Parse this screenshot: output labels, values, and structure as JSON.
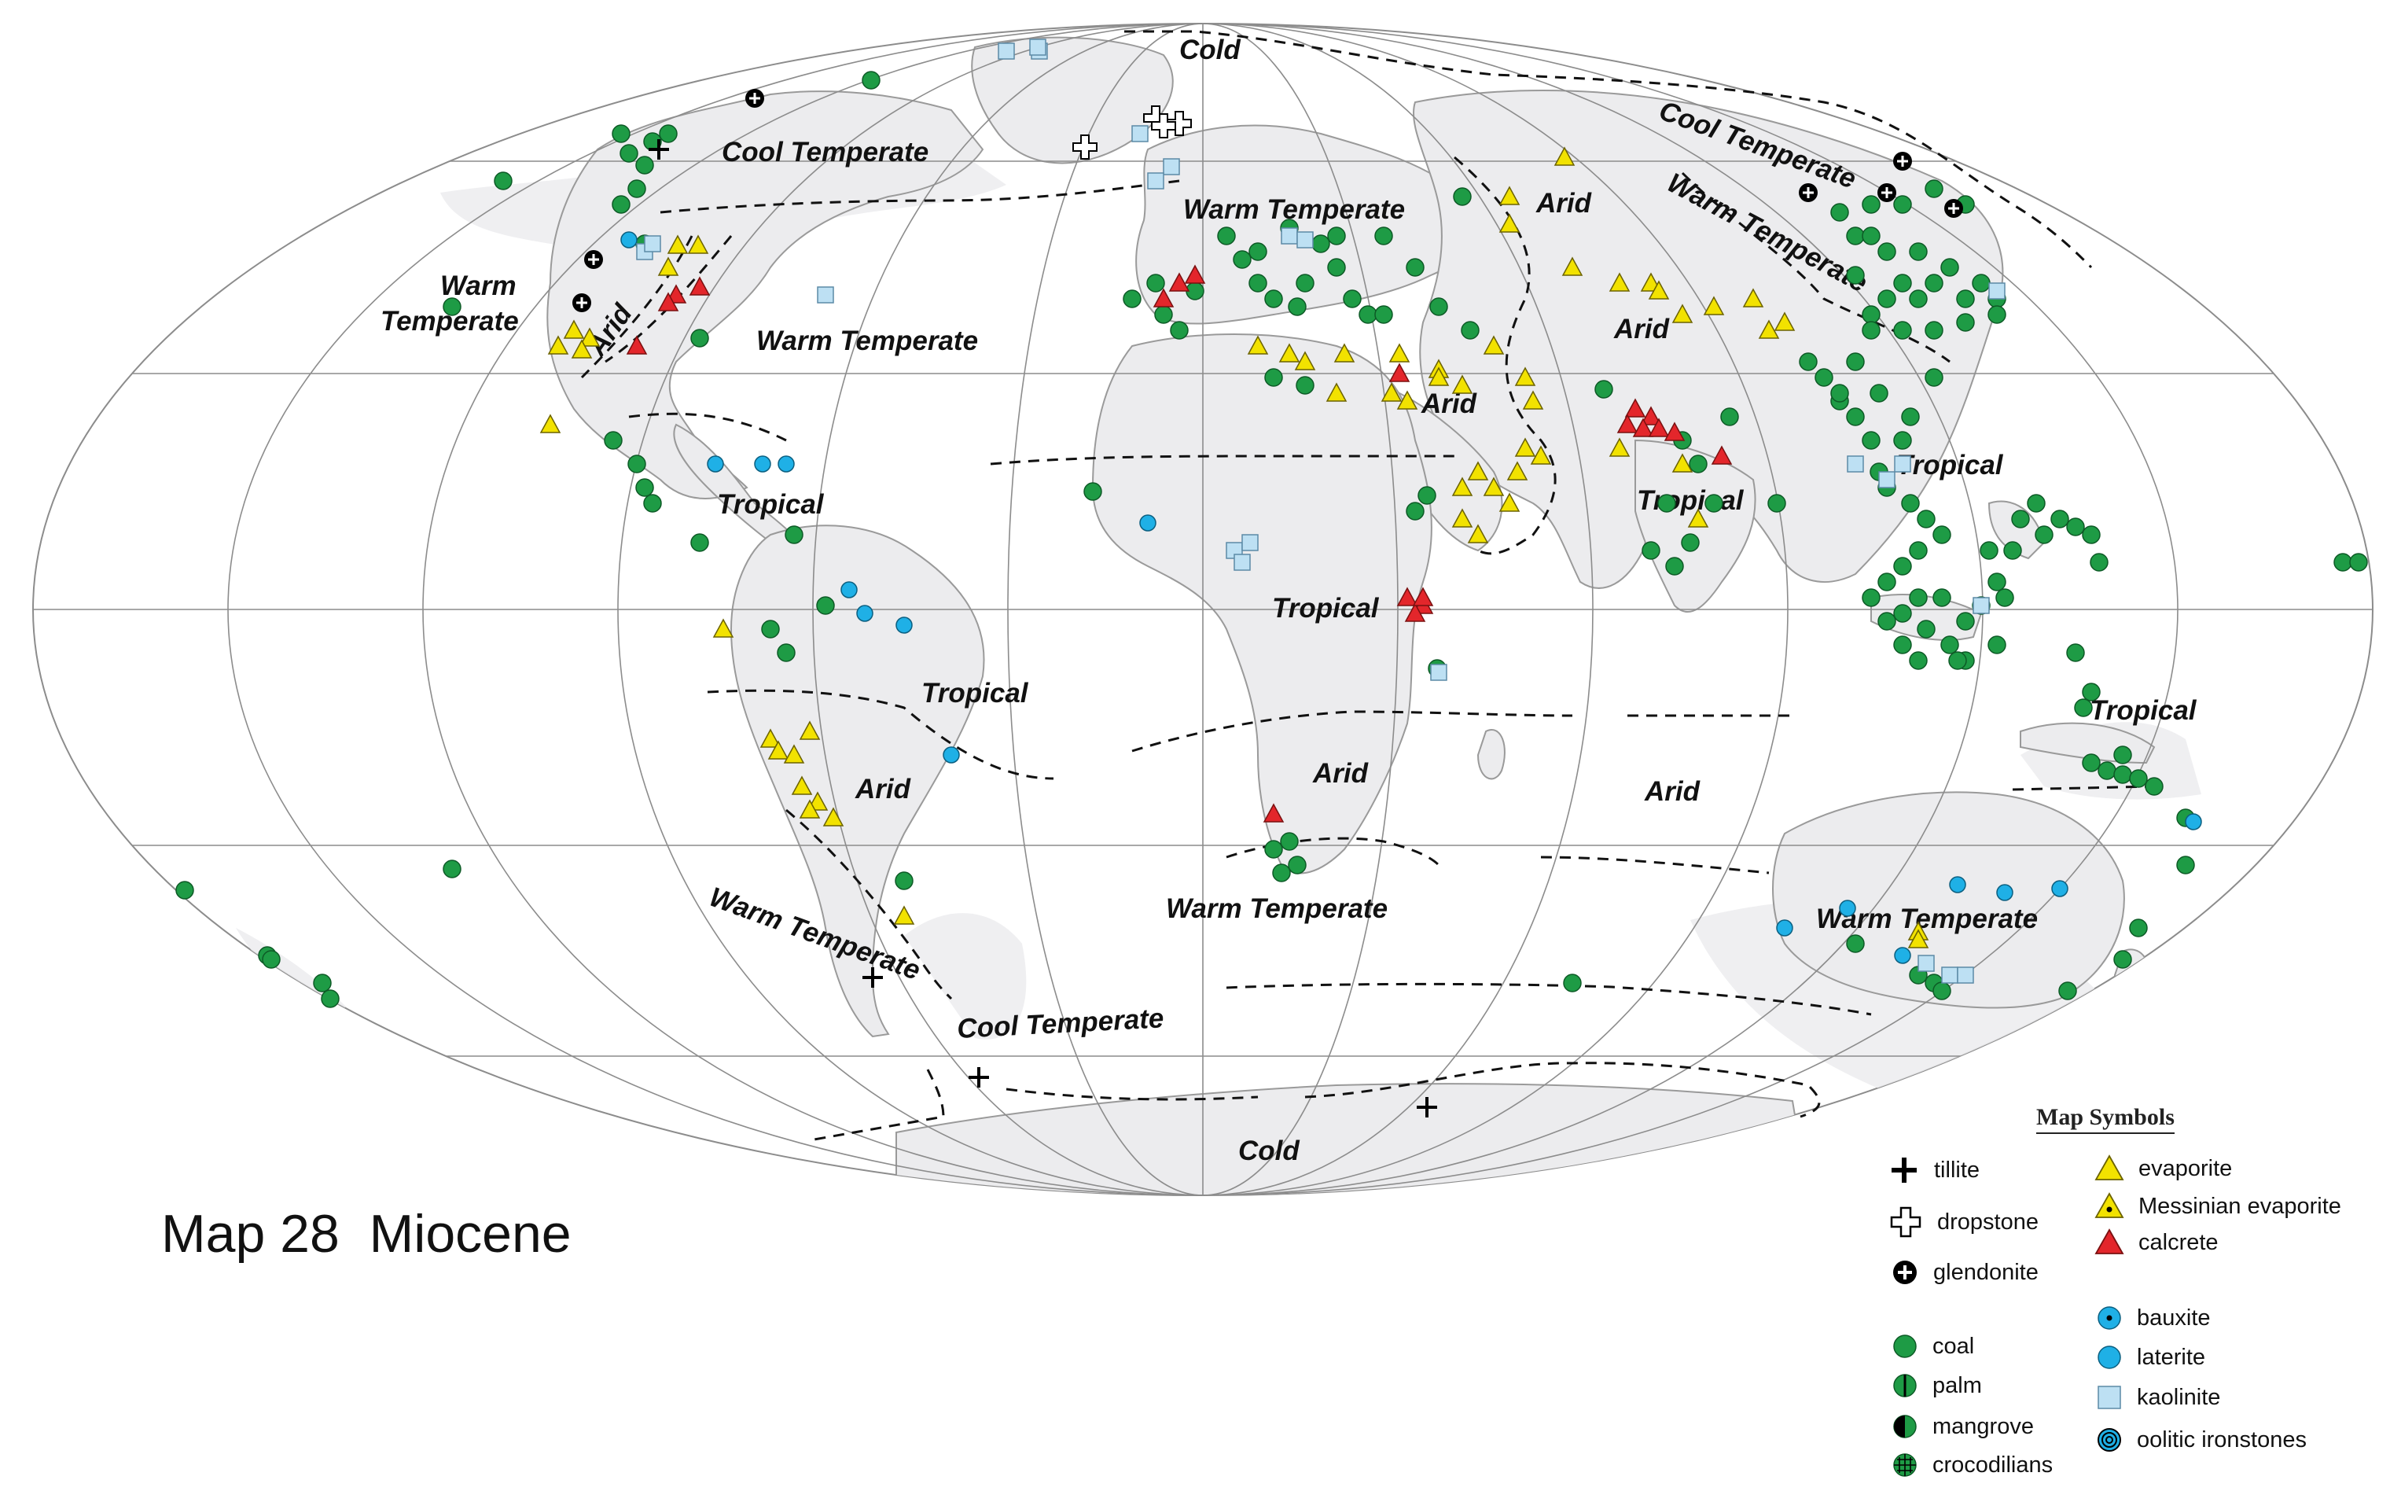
{
  "title": "Map 28  Miocene",
  "climate_zones": [
    {
      "label": "Cold"
    },
    {
      "label": "Cool Temperate"
    },
    {
      "label": "Cool Temperate"
    },
    {
      "label": "Warm Temperate"
    },
    {
      "label": "Warm Temperate"
    },
    {
      "label": "Warm Temperate"
    },
    {
      "label": "Warm"
    },
    {
      "label": "Temperate"
    },
    {
      "label": "Arid"
    },
    {
      "label": "Arid"
    },
    {
      "label": "Arid"
    },
    {
      "label": "Arid"
    },
    {
      "label": "Tropical"
    },
    {
      "label": "Tropical"
    },
    {
      "label": "Tropical"
    },
    {
      "label": "Tropical"
    },
    {
      "label": "Tropical"
    },
    {
      "label": "Tropical"
    },
    {
      "label": "Arid"
    },
    {
      "label": "Arid"
    },
    {
      "label": "Arid"
    },
    {
      "label": "Warm Temperate"
    },
    {
      "label": "Warm Temperate"
    },
    {
      "label": "Warm Temperate"
    },
    {
      "label": "Cool Temperate"
    },
    {
      "label": "Cold"
    }
  ],
  "legend": {
    "title": "Map Symbols",
    "items": [
      {
        "label": "tillite",
        "symbol": "plus-bold",
        "color": "#000000"
      },
      {
        "label": "dropstone",
        "symbol": "plus-outline",
        "color": "#ffffff"
      },
      {
        "label": "glendonite",
        "symbol": "circle-plus",
        "color": "#ffffff"
      },
      {
        "label": "coal",
        "symbol": "circle",
        "color": "#1e9b45"
      },
      {
        "label": "palm",
        "symbol": "circle-split-vertical",
        "color": "#1e9b45"
      },
      {
        "label": "mangrove",
        "symbol": "circle-half-dark",
        "color": "#1e9b45"
      },
      {
        "label": "crocodilians",
        "symbol": "circle-grid",
        "color": "#1e9b45"
      },
      {
        "label": "evaporite",
        "symbol": "triangle",
        "color": "#f2e200"
      },
      {
        "label": "Messinian evaporite",
        "symbol": "triangle-dot",
        "color": "#f2e200"
      },
      {
        "label": "calcrete",
        "symbol": "triangle",
        "color": "#e3262b"
      },
      {
        "label": "bauxite",
        "symbol": "circle-dot",
        "color": "#1fb0e6"
      },
      {
        "label": "laterite",
        "symbol": "circle",
        "color": "#1fb0e6"
      },
      {
        "label": "kaolinite",
        "symbol": "square",
        "color": "#bde0f3"
      },
      {
        "label": "oolitic ironstones",
        "symbol": "circle-ring",
        "color": "#1fb0e6"
      }
    ]
  },
  "colors": {
    "land": "#ececee",
    "land_border": "#9a9a9a",
    "ocean": "#ffffff",
    "graticule": "#8c8c8c",
    "zone_boundary": "#111111"
  }
}
